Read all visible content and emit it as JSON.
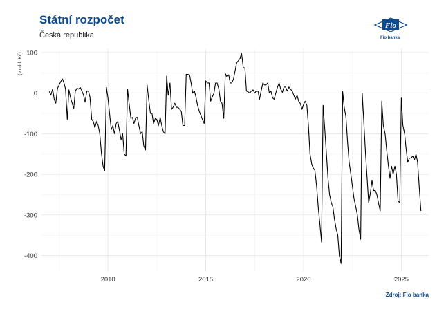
{
  "header": {
    "title": "Státní rozpočet",
    "subtitle": "Česká republika"
  },
  "logo": {
    "text": "Fio",
    "name": "Fio banka",
    "color": "#0d4a8f"
  },
  "footer": {
    "source": "Zdroj: Fio banka"
  },
  "chart_data": {
    "type": "line",
    "title": "Státní rozpočet",
    "subtitle": "Česká republika",
    "xlabel": "",
    "ylabel": "(v mld. Kč)",
    "xlim": [
      2006.6,
      2026.4
    ],
    "ylim": [
      -440,
      110
    ],
    "x_ticks": [
      2010,
      2015,
      2020,
      2025
    ],
    "y_ticks": [
      100,
      0,
      -100,
      -200,
      -300,
      -400
    ],
    "grid": true,
    "legend": "none",
    "line_color": "#000000",
    "series": [
      {
        "points": [
          [
            2007.0,
            4
          ],
          [
            2007.08,
            -5
          ],
          [
            2007.17,
            10
          ],
          [
            2007.25,
            -15
          ],
          [
            2007.33,
            -25
          ],
          [
            2007.42,
            12
          ],
          [
            2007.5,
            20
          ],
          [
            2007.58,
            28
          ],
          [
            2007.67,
            35
          ],
          [
            2007.75,
            25
          ],
          [
            2007.83,
            10
          ],
          [
            2007.92,
            -65
          ],
          [
            2008.0,
            8
          ],
          [
            2008.08,
            -10
          ],
          [
            2008.17,
            -25
          ],
          [
            2008.25,
            -38
          ],
          [
            2008.33,
            5
          ],
          [
            2008.42,
            12
          ],
          [
            2008.5,
            10
          ],
          [
            2008.58,
            14
          ],
          [
            2008.67,
            5
          ],
          [
            2008.75,
            -5
          ],
          [
            2008.83,
            -22
          ],
          [
            2008.92,
            5
          ],
          [
            2009.0,
            5
          ],
          [
            2009.08,
            -10
          ],
          [
            2009.17,
            -65
          ],
          [
            2009.25,
            -70
          ],
          [
            2009.33,
            -85
          ],
          [
            2009.42,
            -70
          ],
          [
            2009.5,
            -80
          ],
          [
            2009.58,
            -100
          ],
          [
            2009.67,
            -150
          ],
          [
            2009.75,
            -180
          ],
          [
            2009.83,
            -192
          ],
          [
            2009.92,
            14
          ],
          [
            2010.0,
            -12
          ],
          [
            2010.08,
            -50
          ],
          [
            2010.17,
            -90
          ],
          [
            2010.25,
            -80
          ],
          [
            2010.33,
            -100
          ],
          [
            2010.42,
            -75
          ],
          [
            2010.5,
            -70
          ],
          [
            2010.58,
            -90
          ],
          [
            2010.67,
            -115
          ],
          [
            2010.75,
            -100
          ],
          [
            2010.83,
            -150
          ],
          [
            2010.92,
            -155
          ],
          [
            2011.0,
            10
          ],
          [
            2011.08,
            -25
          ],
          [
            2011.17,
            -62
          ],
          [
            2011.25,
            -60
          ],
          [
            2011.33,
            -75
          ],
          [
            2011.42,
            -60
          ],
          [
            2011.5,
            -60
          ],
          [
            2011.58,
            -80
          ],
          [
            2011.67,
            -100
          ],
          [
            2011.75,
            -95
          ],
          [
            2011.83,
            -130
          ],
          [
            2011.92,
            -140
          ],
          [
            2012.0,
            20
          ],
          [
            2012.08,
            -15
          ],
          [
            2012.17,
            -50
          ],
          [
            2012.25,
            -50
          ],
          [
            2012.33,
            -75
          ],
          [
            2012.42,
            -62
          ],
          [
            2012.5,
            -65
          ],
          [
            2012.58,
            -80
          ],
          [
            2012.67,
            -60
          ],
          [
            2012.75,
            -80
          ],
          [
            2012.83,
            -95
          ],
          [
            2012.92,
            -100
          ],
          [
            2013.0,
            42
          ],
          [
            2013.08,
            -5
          ],
          [
            2013.17,
            25
          ],
          [
            2013.25,
            -40
          ],
          [
            2013.33,
            -35
          ],
          [
            2013.42,
            -25
          ],
          [
            2013.5,
            -35
          ],
          [
            2013.58,
            -35
          ],
          [
            2013.67,
            -40
          ],
          [
            2013.75,
            -45
          ],
          [
            2013.83,
            -80
          ],
          [
            2013.92,
            -80
          ],
          [
            2014.0,
            46
          ],
          [
            2014.08,
            46
          ],
          [
            2014.17,
            45
          ],
          [
            2014.25,
            25
          ],
          [
            2014.33,
            0
          ],
          [
            2014.42,
            5
          ],
          [
            2014.5,
            -10
          ],
          [
            2014.58,
            -30
          ],
          [
            2014.67,
            -45
          ],
          [
            2014.75,
            -55
          ],
          [
            2014.83,
            -65
          ],
          [
            2014.92,
            -75
          ],
          [
            2015.0,
            30
          ],
          [
            2015.08,
            25
          ],
          [
            2015.17,
            25
          ],
          [
            2015.25,
            -20
          ],
          [
            2015.33,
            -10
          ],
          [
            2015.42,
            0
          ],
          [
            2015.5,
            25
          ],
          [
            2015.58,
            25
          ],
          [
            2015.67,
            10
          ],
          [
            2015.75,
            -20
          ],
          [
            2015.83,
            -25
          ],
          [
            2015.92,
            -62
          ],
          [
            2016.0,
            48
          ],
          [
            2016.08,
            40
          ],
          [
            2016.17,
            45
          ],
          [
            2016.25,
            25
          ],
          [
            2016.33,
            25
          ],
          [
            2016.42,
            35
          ],
          [
            2016.5,
            55
          ],
          [
            2016.58,
            75
          ],
          [
            2016.67,
            80
          ],
          [
            2016.75,
            85
          ],
          [
            2016.83,
            98
          ],
          [
            2016.92,
            62
          ],
          [
            2017.0,
            62
          ],
          [
            2017.08,
            5
          ],
          [
            2017.17,
            3
          ],
          [
            2017.25,
            0
          ],
          [
            2017.33,
            5
          ],
          [
            2017.42,
            8
          ],
          [
            2017.5,
            0
          ],
          [
            2017.58,
            5
          ],
          [
            2017.67,
            5
          ],
          [
            2017.75,
            -15
          ],
          [
            2017.83,
            5
          ],
          [
            2017.92,
            25
          ],
          [
            2018.0,
            20
          ],
          [
            2018.08,
            20
          ],
          [
            2018.17,
            25
          ],
          [
            2018.25,
            0
          ],
          [
            2018.33,
            5
          ],
          [
            2018.42,
            -12
          ],
          [
            2018.5,
            -15
          ],
          [
            2018.58,
            0
          ],
          [
            2018.67,
            15
          ],
          [
            2018.75,
            25
          ],
          [
            2018.83,
            10
          ],
          [
            2018.92,
            2
          ],
          [
            2019.0,
            15
          ],
          [
            2019.08,
            15
          ],
          [
            2019.17,
            5
          ],
          [
            2019.25,
            15
          ],
          [
            2019.33,
            10
          ],
          [
            2019.42,
            5
          ],
          [
            2019.5,
            -5
          ],
          [
            2019.58,
            -15
          ],
          [
            2019.67,
            -5
          ],
          [
            2019.75,
            -20
          ],
          [
            2019.83,
            -25
          ],
          [
            2019.92,
            -40
          ],
          [
            2020.0,
            -28
          ],
          [
            2020.08,
            -20
          ],
          [
            2020.17,
            -30
          ],
          [
            2020.25,
            -80
          ],
          [
            2020.33,
            -150
          ],
          [
            2020.42,
            -175
          ],
          [
            2020.5,
            -185
          ],
          [
            2020.58,
            -190
          ],
          [
            2020.67,
            -230
          ],
          [
            2020.75,
            -280
          ],
          [
            2020.83,
            -320
          ],
          [
            2020.92,
            -367
          ],
          [
            2021.0,
            -30
          ],
          [
            2021.08,
            -85
          ],
          [
            2021.17,
            -150
          ],
          [
            2021.25,
            -210
          ],
          [
            2021.33,
            -250
          ],
          [
            2021.42,
            -270
          ],
          [
            2021.5,
            -280
          ],
          [
            2021.58,
            -310
          ],
          [
            2021.67,
            -335
          ],
          [
            2021.75,
            -350
          ],
          [
            2021.83,
            -400
          ],
          [
            2021.92,
            -420
          ],
          [
            2022.0,
            4
          ],
          [
            2022.08,
            -35
          ],
          [
            2022.17,
            -60
          ],
          [
            2022.25,
            -120
          ],
          [
            2022.33,
            -170
          ],
          [
            2022.42,
            -200
          ],
          [
            2022.5,
            -230
          ],
          [
            2022.58,
            -260
          ],
          [
            2022.67,
            -280
          ],
          [
            2022.75,
            -300
          ],
          [
            2022.83,
            -335
          ],
          [
            2022.92,
            -360
          ],
          [
            2023.0,
            0
          ],
          [
            2023.08,
            -70
          ],
          [
            2023.17,
            -150
          ],
          [
            2023.25,
            -210
          ],
          [
            2023.33,
            -270
          ],
          [
            2023.42,
            -245
          ],
          [
            2023.5,
            -215
          ],
          [
            2023.58,
            -240
          ],
          [
            2023.67,
            -240
          ],
          [
            2023.75,
            -250
          ],
          [
            2023.83,
            -270
          ],
          [
            2023.92,
            -290
          ],
          [
            2024.0,
            -20
          ],
          [
            2024.08,
            -80
          ],
          [
            2024.17,
            -100
          ],
          [
            2024.25,
            -140
          ],
          [
            2024.33,
            -175
          ],
          [
            2024.42,
            -210
          ],
          [
            2024.5,
            -180
          ],
          [
            2024.58,
            -200
          ],
          [
            2024.67,
            -180
          ],
          [
            2024.75,
            -200
          ],
          [
            2024.83,
            -265
          ],
          [
            2024.92,
            -270
          ],
          [
            2025.0,
            -12
          ],
          [
            2025.08,
            -80
          ],
          [
            2025.17,
            -100
          ],
          [
            2025.25,
            -140
          ],
          [
            2025.33,
            -170
          ],
          [
            2025.42,
            -160
          ],
          [
            2025.5,
            -160
          ],
          [
            2025.58,
            -155
          ],
          [
            2025.67,
            -165
          ],
          [
            2025.75,
            -150
          ],
          [
            2025.83,
            -170
          ],
          [
            2025.92,
            -235
          ],
          [
            2026.0,
            -290
          ]
        ]
      }
    ]
  }
}
